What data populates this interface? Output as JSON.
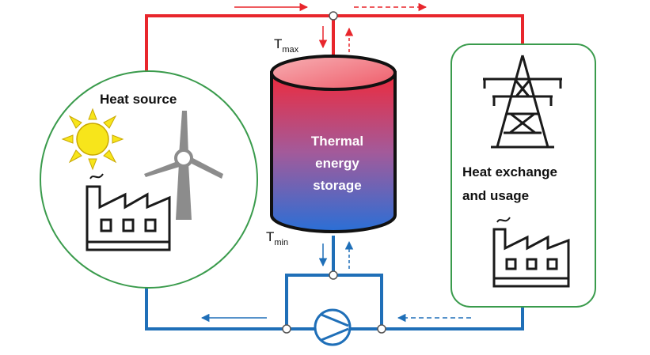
{
  "colors": {
    "hot": "#e8262c",
    "cold": "#1f6fb8",
    "frame": "#3a9b4c",
    "icon": "#1a1a1a",
    "sun": "#f7e51b",
    "turbine": "#8c8c8c"
  },
  "labels": {
    "heat_source": "Heat source",
    "tank_line1": "Thermal",
    "tank_line2": "energy",
    "tank_line3": "storage",
    "t_max_base": "T",
    "t_max_sub": "max",
    "t_min_base": "T",
    "t_min_sub": "min",
    "usage_line1": "Heat exchange",
    "usage_line2": "and usage"
  },
  "icons": {
    "sun": "sun-icon",
    "wind_turbine": "wind-turbine-icon",
    "factory": "factory-icon",
    "power_tower": "power-pylon-icon",
    "pump": "pump-icon"
  }
}
